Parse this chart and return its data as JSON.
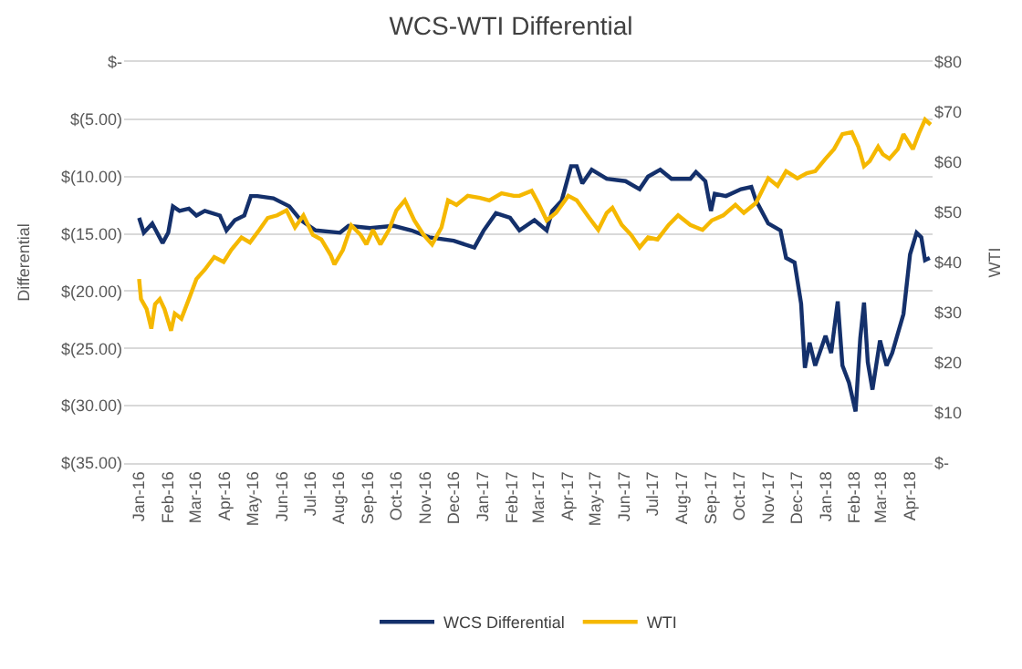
{
  "chart_data": {
    "type": "line",
    "title": "WCS-WTI Differential",
    "ylabel": "Differential",
    "y2label": "WTI",
    "xlim": [
      "2015-12-16",
      "2018-04-25"
    ],
    "xticks": [
      {
        "value": "2016-01-01",
        "label": "Jan-16"
      },
      {
        "value": "2016-02-01",
        "label": "Feb-16"
      },
      {
        "value": "2016-03-01",
        "label": "Mar-16"
      },
      {
        "value": "2016-04-01",
        "label": "Apr-16"
      },
      {
        "value": "2016-05-01",
        "label": "May-16"
      },
      {
        "value": "2016-06-01",
        "label": "Jun-16"
      },
      {
        "value": "2016-07-01",
        "label": "Jul-16"
      },
      {
        "value": "2016-08-01",
        "label": "Aug-16"
      },
      {
        "value": "2016-09-01",
        "label": "Sep-16"
      },
      {
        "value": "2016-10-01",
        "label": "Oct-16"
      },
      {
        "value": "2016-11-01",
        "label": "Nov-16"
      },
      {
        "value": "2016-12-01",
        "label": "Dec-16"
      },
      {
        "value": "2017-01-01",
        "label": "Jan-17"
      },
      {
        "value": "2017-02-01",
        "label": "Feb-17"
      },
      {
        "value": "2017-03-01",
        "label": "Mar-17"
      },
      {
        "value": "2017-04-01",
        "label": "Apr-17"
      },
      {
        "value": "2017-05-01",
        "label": "May-17"
      },
      {
        "value": "2017-06-01",
        "label": "Jun-17"
      },
      {
        "value": "2017-07-01",
        "label": "Jul-17"
      },
      {
        "value": "2017-08-01",
        "label": "Aug-17"
      },
      {
        "value": "2017-09-01",
        "label": "Sep-17"
      },
      {
        "value": "2017-10-01",
        "label": "Oct-17"
      },
      {
        "value": "2017-11-01",
        "label": "Nov-17"
      },
      {
        "value": "2017-12-01",
        "label": "Dec-17"
      },
      {
        "value": "2018-01-01",
        "label": "Jan-18"
      },
      {
        "value": "2018-02-01",
        "label": "Feb-18"
      },
      {
        "value": "2018-03-01",
        "label": "Mar-18"
      },
      {
        "value": "2018-04-01",
        "label": "Apr-18"
      }
    ],
    "ylim": [
      -35,
      0
    ],
    "yticks": [
      {
        "value": 0,
        "label": "$-"
      },
      {
        "value": -5,
        "label": "$(5.00)"
      },
      {
        "value": -10,
        "label": "$(10.00)"
      },
      {
        "value": -15,
        "label": "$(15.00)"
      },
      {
        "value": -20,
        "label": "$(20.00)"
      },
      {
        "value": -25,
        "label": "$(25.00)"
      },
      {
        "value": -30,
        "label": "$(30.00)"
      },
      {
        "value": -35,
        "label": "$(35.00)"
      }
    ],
    "y2lim": [
      0,
      80
    ],
    "y2ticks": [
      {
        "value": 0,
        "label": "$-"
      },
      {
        "value": 10,
        "label": "$10"
      },
      {
        "value": 20,
        "label": "$20"
      },
      {
        "value": 30,
        "label": "$30"
      },
      {
        "value": 40,
        "label": "$40"
      },
      {
        "value": 50,
        "label": "$50"
      },
      {
        "value": 60,
        "label": "$60"
      },
      {
        "value": 70,
        "label": "$70"
      },
      {
        "value": 80,
        "label": "$80"
      }
    ],
    "grid": "y",
    "legend": "bottom",
    "marker": "none",
    "line_style": "solid",
    "series": [
      {
        "name": "WCS Differential",
        "color": "#14306b",
        "x": [
          "2016-01-01",
          "2016-01-06",
          "2016-01-15",
          "2016-01-26",
          "2016-02-01",
          "2016-02-06",
          "2016-02-13",
          "2016-02-23",
          "2016-03-02",
          "2016-03-11",
          "2016-03-27",
          "2016-04-03",
          "2016-04-12",
          "2016-04-22",
          "2016-04-29",
          "2016-05-06",
          "2016-05-23",
          "2016-06-09",
          "2016-06-21",
          "2016-07-07",
          "2016-08-02",
          "2016-08-11",
          "2016-09-03",
          "2016-09-28",
          "2016-10-17",
          "2016-11-05",
          "2016-12-01",
          "2016-12-23",
          "2017-01-02",
          "2017-01-15",
          "2017-01-30",
          "2017-02-09",
          "2017-02-25",
          "2017-03-10",
          "2017-03-16",
          "2017-03-26",
          "2017-04-05",
          "2017-04-11",
          "2017-04-17",
          "2017-04-27",
          "2017-05-13",
          "2017-06-02",
          "2017-06-17",
          "2017-06-26",
          "2017-07-09",
          "2017-07-21",
          "2017-08-10",
          "2017-08-16",
          "2017-08-26",
          "2017-09-01",
          "2017-09-05",
          "2017-09-17",
          "2017-10-03",
          "2017-10-14",
          "2017-10-19",
          "2017-11-01",
          "2017-11-14",
          "2017-11-20",
          "2017-11-29",
          "2017-12-06",
          "2017-12-10",
          "2017-12-15",
          "2017-12-21",
          "2018-01-01",
          "2018-01-07",
          "2018-01-14",
          "2018-01-19",
          "2018-01-26",
          "2018-02-02",
          "2018-02-07",
          "2018-02-11",
          "2018-02-15",
          "2018-02-20",
          "2018-02-28",
          "2018-03-07",
          "2018-03-13",
          "2018-03-19",
          "2018-03-25",
          "2018-04-01",
          "2018-04-08",
          "2018-04-13",
          "2018-04-17",
          "2018-04-22"
        ],
        "values": [
          -13.6,
          -14.9,
          -14.1,
          -15.8,
          -14.9,
          -12.6,
          -13.0,
          -12.8,
          -13.4,
          -13.0,
          -13.4,
          -14.7,
          -13.8,
          -13.4,
          -11.7,
          -11.7,
          -11.9,
          -12.6,
          -13.8,
          -14.7,
          -14.9,
          -14.3,
          -14.5,
          -14.3,
          -14.7,
          -15.3,
          -15.6,
          -16.2,
          -14.7,
          -13.2,
          -13.6,
          -14.7,
          -13.8,
          -14.7,
          -13.0,
          -12.1,
          -9.1,
          -9.1,
          -10.6,
          -9.4,
          -10.2,
          -10.4,
          -11.1,
          -10.0,
          -9.4,
          -10.2,
          -10.2,
          -9.6,
          -10.4,
          -13.0,
          -11.5,
          -11.7,
          -11.1,
          -10.9,
          -12.1,
          -14.1,
          -14.7,
          -17.1,
          -17.5,
          -21.1,
          -26.7,
          -24.5,
          -26.5,
          -23.9,
          -25.4,
          -20.9,
          -26.5,
          -28.0,
          -30.5,
          -24.1,
          -21.0,
          -26.2,
          -28.6,
          -24.3,
          -26.5,
          -25.4,
          -23.7,
          -22.0,
          -16.8,
          -14.9,
          -15.3,
          -17.3,
          -17.1
        ]
      },
      {
        "name": "WTI",
        "color": "#f5b800",
        "axis": "y2",
        "x": [
          "2016-01-01",
          "2016-01-03",
          "2016-01-09",
          "2016-01-14",
          "2016-01-18",
          "2016-01-23",
          "2016-01-28",
          "2016-02-04",
          "2016-02-08",
          "2016-02-15",
          "2016-02-23",
          "2016-03-02",
          "2016-03-11",
          "2016-03-21",
          "2016-03-31",
          "2016-04-08",
          "2016-04-19",
          "2016-04-28",
          "2016-05-08",
          "2016-05-17",
          "2016-05-27",
          "2016-06-06",
          "2016-06-15",
          "2016-06-24",
          "2016-07-04",
          "2016-07-13",
          "2016-07-23",
          "2016-07-27",
          "2016-08-05",
          "2016-08-14",
          "2016-08-24",
          "2016-08-30",
          "2016-09-06",
          "2016-09-14",
          "2016-09-23",
          "2016-10-01",
          "2016-10-10",
          "2016-10-20",
          "2016-10-30",
          "2016-11-08",
          "2016-11-18",
          "2016-11-25",
          "2016-12-04",
          "2016-12-16",
          "2016-12-29",
          "2017-01-08",
          "2017-01-21",
          "2017-02-03",
          "2017-02-09",
          "2017-02-22",
          "2017-03-01",
          "2017-03-10",
          "2017-03-20",
          "2017-04-02",
          "2017-04-11",
          "2017-04-24",
          "2017-05-04",
          "2017-05-13",
          "2017-05-19",
          "2017-05-29",
          "2017-06-08",
          "2017-06-17",
          "2017-06-26",
          "2017-07-06",
          "2017-07-18",
          "2017-07-28",
          "2017-08-10",
          "2017-08-23",
          "2017-09-02",
          "2017-09-14",
          "2017-09-27",
          "2017-10-06",
          "2017-10-19",
          "2017-11-01",
          "2017-11-11",
          "2017-11-20",
          "2017-12-02",
          "2017-12-12",
          "2017-12-21",
          "2018-01-01",
          "2018-01-10",
          "2018-01-19",
          "2018-01-29",
          "2018-02-05",
          "2018-02-11",
          "2018-02-17",
          "2018-02-26",
          "2018-03-03",
          "2018-03-10",
          "2018-03-19",
          "2018-03-25",
          "2018-04-04",
          "2018-04-11",
          "2018-04-17",
          "2018-04-23"
        ],
        "values": [
          36.7,
          32.7,
          30.7,
          26.8,
          31.7,
          32.7,
          30.7,
          26.4,
          29.8,
          28.8,
          32.7,
          36.7,
          38.6,
          41.1,
          40.1,
          42.5,
          45.0,
          44.0,
          46.5,
          48.9,
          49.4,
          50.4,
          47.0,
          49.4,
          45.5,
          44.6,
          41.5,
          39.6,
          42.5,
          47.4,
          45.5,
          43.6,
          46.5,
          43.6,
          46.5,
          50.4,
          52.4,
          48.4,
          45.5,
          43.6,
          47.0,
          52.4,
          51.5,
          53.3,
          52.9,
          52.4,
          53.8,
          53.3,
          53.3,
          54.3,
          51.9,
          48.4,
          49.9,
          53.3,
          52.4,
          49.0,
          46.5,
          49.9,
          50.9,
          47.5,
          45.5,
          43.0,
          45.0,
          44.6,
          47.5,
          49.4,
          47.5,
          46.5,
          48.4,
          49.4,
          51.5,
          49.9,
          51.9,
          56.8,
          55.3,
          58.2,
          56.8,
          57.8,
          58.2,
          60.7,
          62.6,
          65.6,
          66.0,
          63.1,
          59.2,
          60.2,
          63.1,
          61.6,
          60.7,
          62.6,
          65.6,
          62.6,
          66.0,
          68.5,
          67.5
        ]
      }
    ]
  }
}
